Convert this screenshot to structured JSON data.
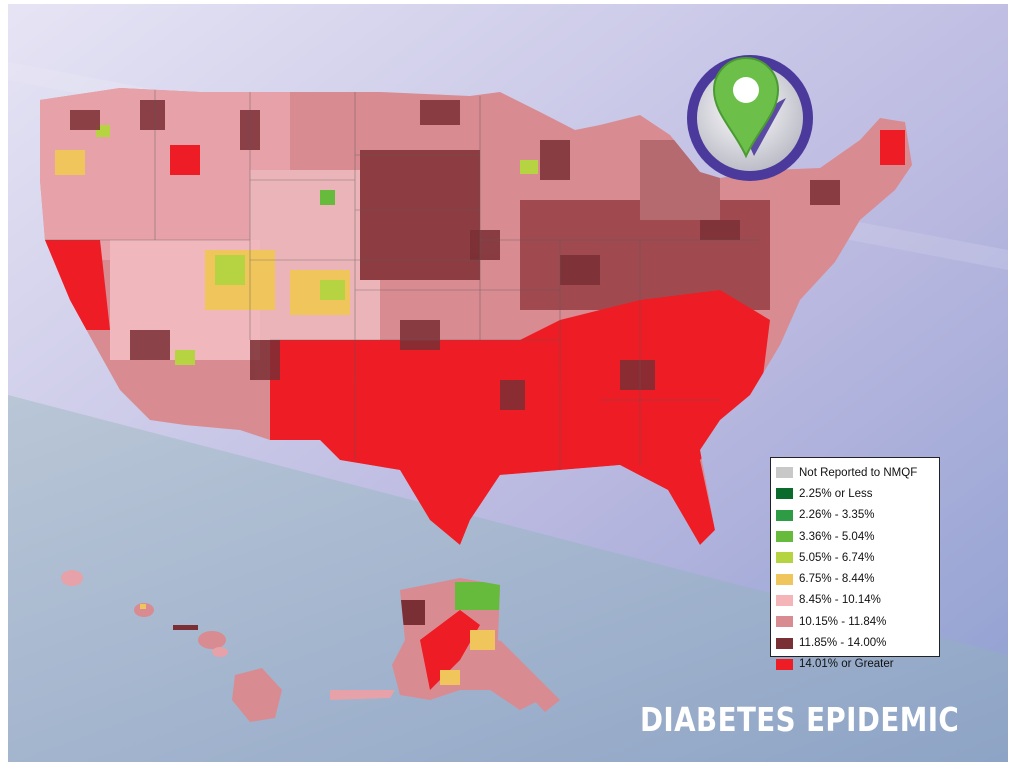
{
  "title": "DIABETES EPIDEMIC",
  "legend": {
    "items": [
      {
        "label": "Not Reported to NMQF",
        "color": "#c8c8c8"
      },
      {
        "label": "2.25% or Less",
        "color": "#0b6b2c"
      },
      {
        "label": "2.26% - 3.35%",
        "color": "#2e9c45"
      },
      {
        "label": "3.36% - 5.04%",
        "color": "#66bb3c"
      },
      {
        "label": "5.05% - 6.74%",
        "color": "#b6d442"
      },
      {
        "label": "6.75% - 8.44%",
        "color": "#f0c65c"
      },
      {
        "label": "8.45% - 10.14%",
        "color": "#f4b4b8"
      },
      {
        "label": "10.15% - 11.84%",
        "color": "#d98b92"
      },
      {
        "label": "11.85% - 14.00%",
        "color": "#7a2f35"
      },
      {
        "label": "14.01% or Greater",
        "color": "#ee1c24"
      }
    ]
  },
  "logo": {
    "icon": "location-pin-icon",
    "pin_color": "#6cc04a",
    "ring_color": "#4b3a9c"
  },
  "colors": {
    "background_light": "#d6d4ee",
    "background_dark": "#8fa5c8",
    "map_base": "#d98b92",
    "map_dark": "#7a2f35",
    "map_red": "#ee1c24"
  }
}
